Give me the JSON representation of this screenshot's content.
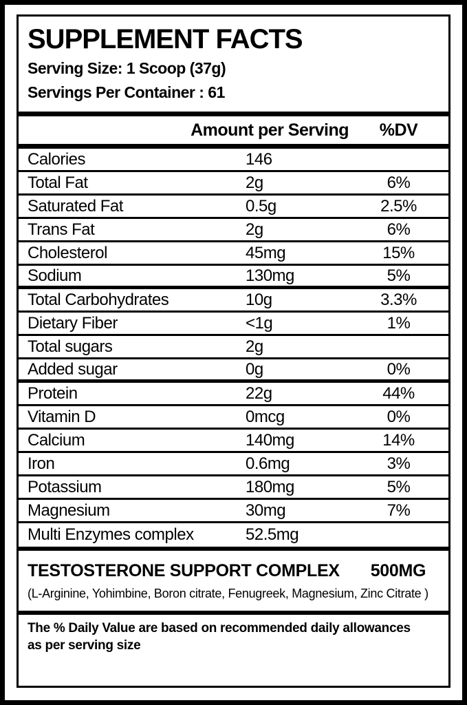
{
  "label": {
    "title": "SUPPLEMENT FACTS",
    "serving_size": "Serving Size: 1 Scoop (37g)",
    "servings_per_container": "Servings Per Container : 61",
    "colors": {
      "ink": "#000000",
      "background": "#ffffff"
    },
    "table": {
      "columns": {
        "amount": "Amount per Serving",
        "dv": "%DV"
      },
      "rows": [
        {
          "name": "Calories",
          "amount": "146",
          "dv": "",
          "group_end": false
        },
        {
          "name": "Total Fat",
          "amount": "2g",
          "dv": "6%",
          "group_end": false
        },
        {
          "name": "Saturated Fat",
          "amount": "0.5g",
          "dv": "2.5%",
          "group_end": false
        },
        {
          "name": "Trans Fat",
          "amount": "2g",
          "dv": "6%",
          "group_end": false
        },
        {
          "name": "Cholesterol",
          "amount": "45mg",
          "dv": "15%",
          "group_end": false
        },
        {
          "name": "Sodium",
          "amount": "130mg",
          "dv": "5%",
          "group_end": true
        },
        {
          "name": "Total Carbohydrates",
          "amount": "10g",
          "dv": "3.3%",
          "group_end": false
        },
        {
          "name": "Dietary Fiber",
          "amount": "<1g",
          "dv": "1%",
          "group_end": false
        },
        {
          "name": "Total sugars",
          "amount": "2g",
          "dv": "",
          "group_end": false
        },
        {
          "name": "Added sugar",
          "amount": "0g",
          "dv": "0%",
          "group_end": true
        },
        {
          "name": "Protein",
          "amount": "22g",
          "dv": "44%",
          "group_end": false
        },
        {
          "name": "Vitamin D",
          "amount": "0mcg",
          "dv": "0%",
          "group_end": false
        },
        {
          "name": "Calcium",
          "amount": "140mg",
          "dv": "14%",
          "group_end": false
        },
        {
          "name": "Iron",
          "amount": "0.6mg",
          "dv": "3%",
          "group_end": false
        },
        {
          "name": "Potassium",
          "amount": "180mg",
          "dv": "5%",
          "group_end": false
        },
        {
          "name": "Magnesium",
          "amount": "30mg",
          "dv": "7%",
          "group_end": false
        },
        {
          "name": "Multi Enzymes complex",
          "amount": "52.5mg",
          "dv": "",
          "group_end": false
        }
      ]
    },
    "complex": {
      "title": "TESTOSTERONE SUPPORT COMPLEX",
      "amount": "500MG",
      "ingredients": "(L-Arginine, Yohimbine, Boron citrate, Fenugreek, Magnesium, Zinc Citrate )"
    },
    "footnote": {
      "line1": "The % Daily Value are based on recommended daily allowances",
      "line2": "as per serving size"
    }
  }
}
